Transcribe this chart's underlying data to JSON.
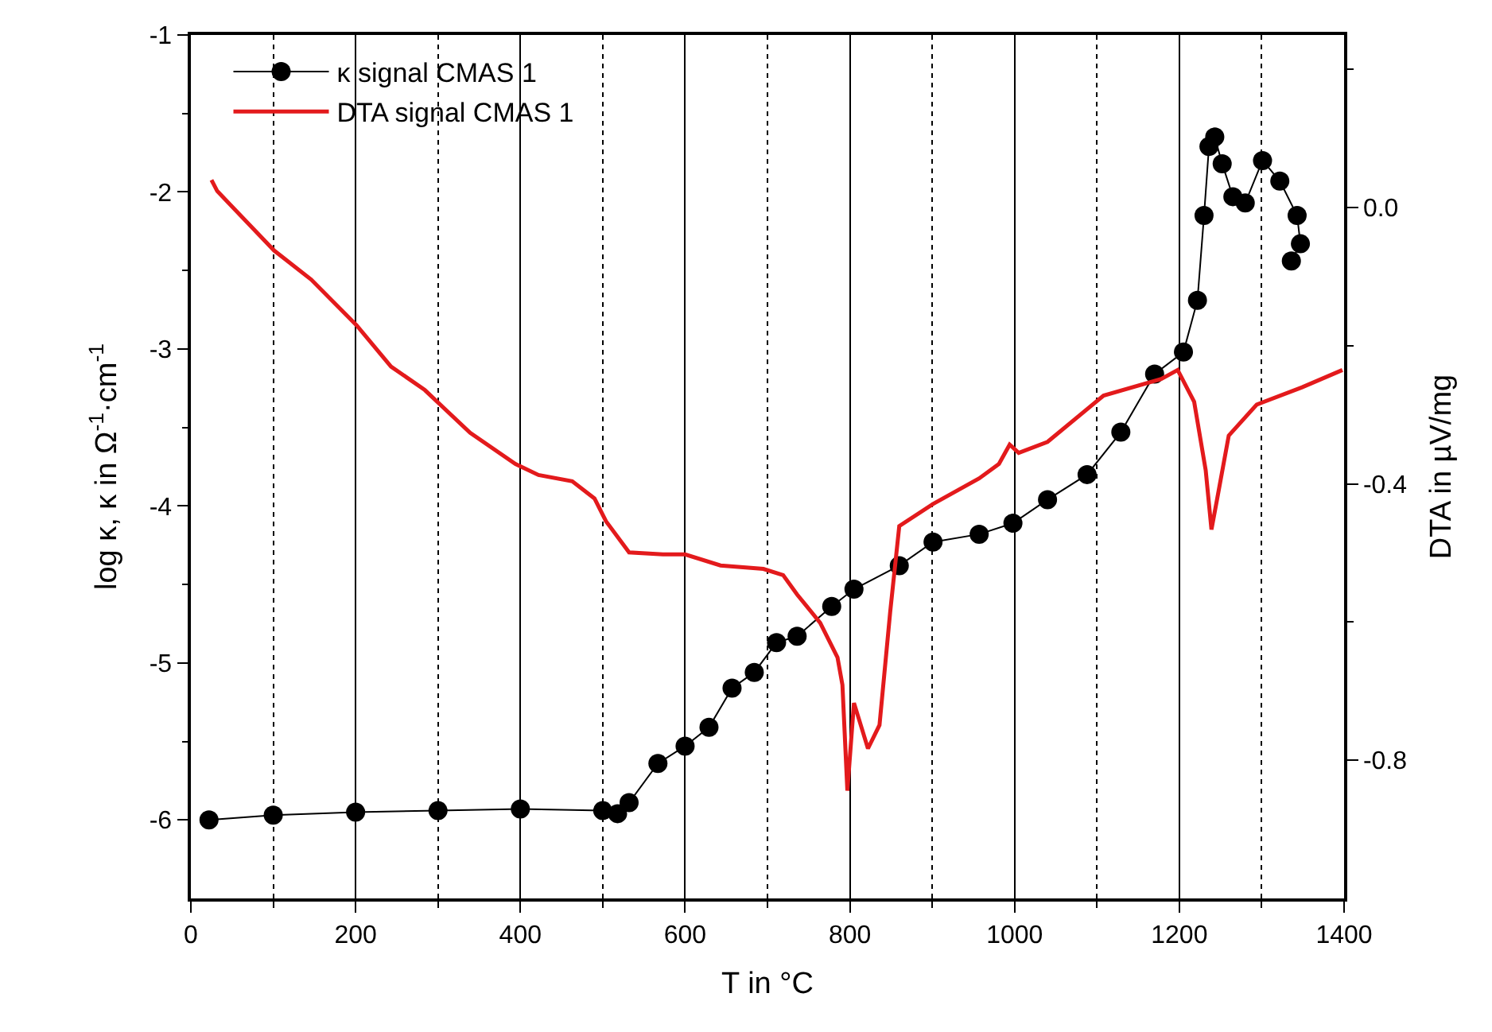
{
  "chart_data": {
    "type": "line",
    "xlabel": "T in °C",
    "ylabel": "log κ, κ in Ω$^{-1}$·cm$^{-1}$",
    "y2label": "DTA in µV/mg",
    "xlim": [
      0,
      1400
    ],
    "xticks": [
      0,
      {
        "value": 100,
        "label": null
      },
      200,
      {
        "value": 300,
        "label": null
      },
      400,
      {
        "value": 500,
        "label": null
      },
      600,
      {
        "value": 700,
        "label": null
      },
      800,
      {
        "value": 900,
        "label": null
      },
      1000,
      {
        "value": 1100,
        "label": null
      },
      1200,
      {
        "value": 1300,
        "label": null
      },
      1400
    ],
    "ylim": [
      -6.5,
      -1
    ],
    "yticks": [
      -6,
      {
        "value": -5.5,
        "label": null
      },
      -5,
      {
        "value": -4.5,
        "label": null
      },
      -4,
      {
        "value": -3.5,
        "label": null
      },
      -3,
      {
        "value": -2.5,
        "label": null
      },
      -2,
      {
        "value": -1.5,
        "label": null
      },
      -1
    ],
    "y2lim": [
      -1.0,
      0.25
    ],
    "y2ticks": [
      {
        "value": -0.8,
        "label": "-0.8"
      },
      {
        "value": -0.6,
        "label": null
      },
      {
        "value": -0.4,
        "label": "-0.4"
      },
      {
        "value": -0.2,
        "label": null
      },
      {
        "value": 0.0,
        "label": "0.0"
      },
      {
        "value": 0.2,
        "label": null
      }
    ],
    "grid": "x",
    "legend": "top left",
    "series": [
      {
        "name": "κ signal CMAS 1",
        "color": "#000000",
        "marker": "circle",
        "x": [
          22,
          100,
          200,
          300,
          400,
          500,
          518,
          532,
          567,
          600,
          629,
          657,
          684,
          711,
          736,
          778,
          805,
          860,
          901,
          957,
          998,
          1040,
          1088,
          1129,
          1170,
          1205,
          1222,
          1230,
          1236,
          1243,
          1252,
          1265,
          1280,
          1301,
          1322,
          1343,
          1347,
          1336
        ],
        "values": [
          -6.0,
          -5.97,
          -5.95,
          -5.94,
          -5.93,
          -5.94,
          -5.96,
          -5.89,
          -5.64,
          -5.53,
          -5.41,
          -5.16,
          -5.06,
          -4.87,
          -4.83,
          -4.64,
          -4.53,
          -4.38,
          -4.23,
          -4.18,
          -4.11,
          -3.96,
          -3.8,
          -3.53,
          -3.16,
          -3.02,
          -2.69,
          -2.15,
          -1.71,
          -1.65,
          -1.82,
          -2.03,
          -2.07,
          -1.8,
          -1.93,
          -2.15,
          -2.33,
          -2.44
        ]
      },
      {
        "name": "DTA signal CMAS 1",
        "color": "#e31a1c",
        "marker": "none",
        "axis": "y2",
        "x": [
          25,
          32,
          101,
          146,
          201,
          243,
          284,
          339,
          394,
          422,
          463,
          490,
          504,
          532,
          573,
          600,
          643,
          695,
          719,
          736,
          764,
          785,
          791,
          797,
          805,
          822,
          836,
          849,
          860,
          901,
          957,
          981,
          994,
          1005,
          1040,
          1108,
          1178,
          1198,
          1218,
          1232,
          1239,
          1246,
          1260,
          1294,
          1349,
          1398
        ],
        "values": [
          0.04,
          0.024,
          -0.062,
          -0.104,
          -0.17,
          -0.23,
          -0.264,
          -0.326,
          -0.371,
          -0.387,
          -0.396,
          -0.421,
          -0.454,
          -0.499,
          -0.502,
          -0.502,
          -0.518,
          -0.523,
          -0.532,
          -0.56,
          -0.601,
          -0.651,
          -0.691,
          -0.844,
          -0.717,
          -0.783,
          -0.749,
          -0.585,
          -0.461,
          -0.429,
          -0.392,
          -0.371,
          -0.343,
          -0.355,
          -0.339,
          -0.272,
          -0.248,
          -0.235,
          -0.281,
          -0.38,
          -0.466,
          -0.421,
          -0.33,
          -0.285,
          -0.26,
          -0.235
        ]
      }
    ]
  }
}
